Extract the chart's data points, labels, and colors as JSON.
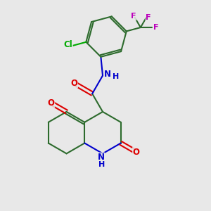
{
  "background_color": "#e8e8e8",
  "bond_color": "#2d6b2d",
  "bond_width": 1.5,
  "N_color": "#0000cc",
  "O_color": "#dd0000",
  "Cl_color": "#00aa00",
  "F_color": "#bb00bb",
  "figsize": [
    3.0,
    3.0
  ],
  "dpi": 100,
  "xlim": [
    0,
    10
  ],
  "ylim": [
    0,
    10
  ]
}
